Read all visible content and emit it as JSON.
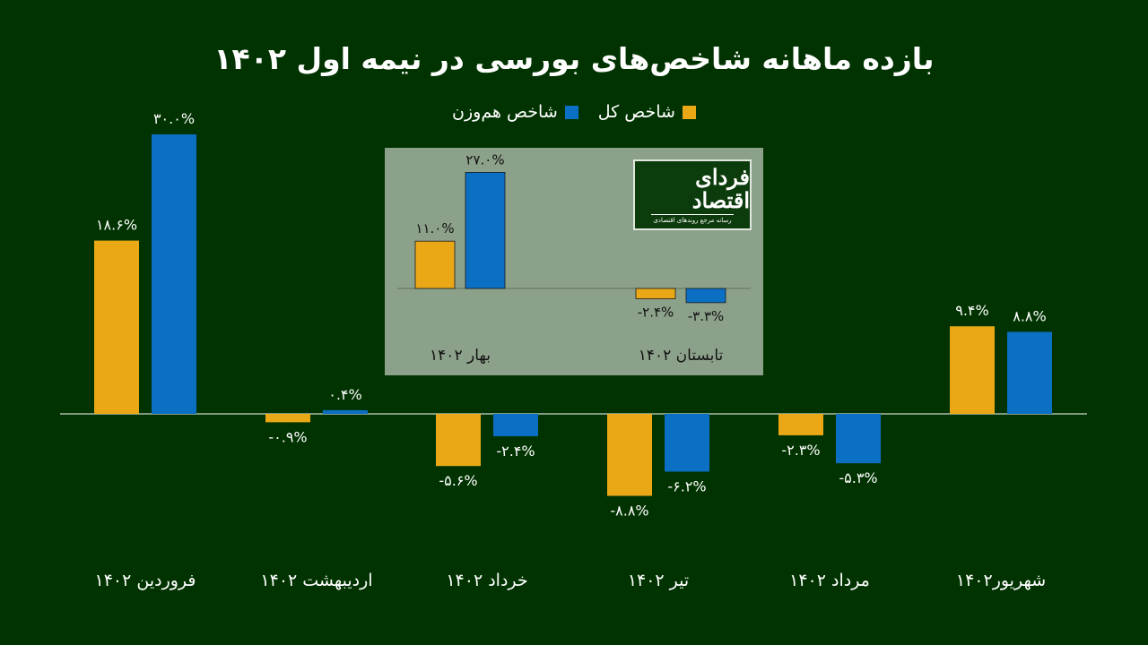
{
  "title": "بازده ماهانه شاخص‌های بورسی در نیمه اول ۱۴۰۲",
  "colors": {
    "background": "#003300",
    "overall_index": "#eaa817",
    "equal_weight_index": "#0b6fc4",
    "inset_background": "#8ca18a",
    "axis": "#ffffff"
  },
  "logo": {
    "main_text": "فردای اقتصاد",
    "sub_text": "رسانه مرجع روندهای اقتصادی"
  },
  "chart_data": [
    {
      "type": "bar",
      "categories": [
        "فروردین ۱۴۰۲",
        "اردیبهشت ۱۴۰۲",
        "خرداد ۱۴۰۲",
        "تیر ۱۴۰۲",
        "مرداد ۱۴۰۲",
        "شهریور۱۴۰۲"
      ],
      "series": [
        {
          "name": "شاخص کل",
          "values": [
            18.6,
            -0.9,
            -5.6,
            -8.8,
            -2.3,
            9.4
          ],
          "labels": [
            "۱۸.۶%",
            "-۰.۹%",
            "-۵.۶%",
            "-۸.۸%",
            "-۲.۳%",
            "۹.۴%"
          ]
        },
        {
          "name": "شاخص هم‌وزن",
          "values": [
            30.0,
            0.4,
            -2.4,
            -6.2,
            -5.3,
            8.8
          ],
          "labels": [
            "۳۰.۰%",
            "۰.۴%",
            "-۲.۴%",
            "-۶.۲%",
            "-۵.۳%",
            "۸.۸%"
          ]
        }
      ],
      "title": "بازده ماهانه شاخص‌های بورسی در نیمه اول ۱۴۰۲",
      "xlabel": "",
      "ylabel": "",
      "ylim": [
        -12,
        36
      ],
      "grid": false,
      "legend": "top-center",
      "category_order": "left-to-right"
    },
    {
      "type": "bar",
      "categories": [
        "بهار ۱۴۰۲",
        "تابستان ۱۴۰۲"
      ],
      "series": [
        {
          "name": "شاخص کل",
          "values": [
            11.0,
            -2.4
          ],
          "labels": [
            "۱۱.۰%",
            "-۲.۴%"
          ]
        },
        {
          "name": "شاخص هم‌وزن",
          "values": [
            27.0,
            -3.3
          ],
          "labels": [
            "۲۷.۰%",
            "-۳.۳%"
          ]
        }
      ],
      "title": "",
      "xlabel": "",
      "ylabel": "",
      "grid": false,
      "legend": "none"
    }
  ]
}
